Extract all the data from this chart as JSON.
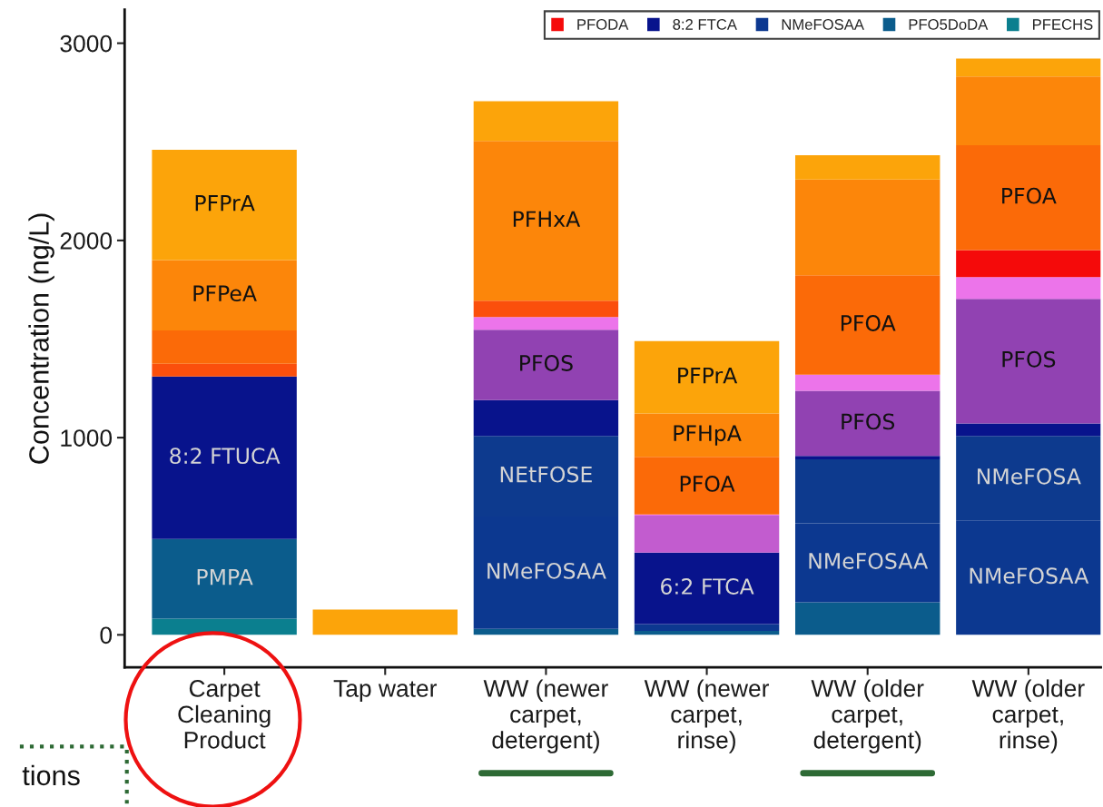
{
  "chart_data": {
    "type": "bar",
    "stacked": true,
    "ylabel": "Concentration (ng/L)",
    "categories": [
      "Carpet\nCleaning\nProduct",
      "Tap water",
      "WW (newer\ncarpet,\ndetergent)",
      "WW (newer\ncarpet,\nrinse)",
      "WW (older\ncarpet,\ndetergent)",
      "WW (older\ncarpet,\nrinse)"
    ],
    "ylim": [
      -165,
      3170
    ],
    "yticks": [
      0,
      1000,
      2000,
      3000
    ],
    "grid": false,
    "legend": "top right",
    "series": [
      {
        "name": "PFECHS",
        "color": "#0b7f8f",
        "values": [
          82,
          0,
          0,
          0,
          0,
          0
        ]
      },
      {
        "name": "PFO5DoDA",
        "color": "#0b5c8c",
        "values": [
          404,
          0,
          30,
          20,
          165,
          0
        ],
        "value_labels": [
          "PMPA",
          null,
          null,
          null,
          null,
          null
        ]
      },
      {
        "name": "NMeFOSAA",
        "color": "#0c3890",
        "values": [
          0,
          0,
          570,
          35,
          400,
          580
        ],
        "value_labels": [
          null,
          null,
          "NMeFOSAA",
          null,
          "NMeFOSAA",
          "NMeFOSAA"
        ]
      },
      {
        "color": "#0d3a8e",
        "values": [
          0,
          0,
          408,
          0,
          325,
          428
        ],
        "value_labels": [
          null,
          null,
          "NEtFOSE",
          null,
          null,
          "NMeFOSA"
        ]
      },
      {
        "name": "8:2 FTCA",
        "color": "#08138c",
        "values": [
          824,
          0,
          182,
          362,
          17,
          64
        ],
        "value_labels": [
          "8:2 FTUCA",
          null,
          null,
          "6:2 FTCA",
          null,
          null
        ]
      },
      {
        "color": "#9142b2",
        "values": [
          0,
          0,
          357,
          0,
          330,
          632
        ],
        "value_labels": [
          null,
          null,
          "PFOS",
          null,
          "PFOS",
          "PFOS"
        ]
      },
      {
        "color": "#c25ccf",
        "values": [
          0,
          0,
          0,
          188,
          0,
          0
        ]
      },
      {
        "color": "#ec74ea",
        "values": [
          0,
          0,
          64,
          5,
          82,
          110
        ]
      },
      {
        "name": "PFODA",
        "color": "#f50a0a",
        "values": [
          0,
          0,
          0,
          0,
          0,
          137
        ]
      },
      {
        "color": "#fb4f0c",
        "values": [
          64,
          0,
          83,
          0,
          0,
          0
        ]
      },
      {
        "color": "#fb6a08",
        "values": [
          170,
          0,
          0,
          293,
          504,
          532
        ],
        "value_labels": [
          null,
          null,
          null,
          "PFOA",
          "PFOA",
          "PFOA"
        ]
      },
      {
        "color": "#fc860a",
        "values": [
          356,
          0,
          810,
          220,
          486,
          348
        ],
        "value_labels": [
          "PFPeA",
          null,
          "PFHxA",
          "PFHpA",
          null,
          null
        ]
      },
      {
        "color": "#fca40a",
        "values": [
          560,
          128,
          202,
          366,
          123,
          91
        ],
        "value_labels": [
          "PFPrA",
          null,
          null,
          "PFPrA",
          null,
          null
        ]
      }
    ],
    "annotations": [
      "tions"
    ]
  }
}
